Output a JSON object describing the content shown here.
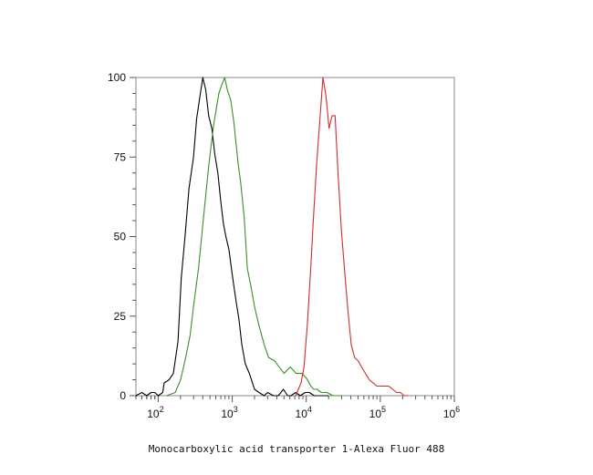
{
  "chart_data": {
    "type": "line",
    "title": "",
    "xlabel": "Monocarboxylic acid transporter 1-Alexa Fluor 488",
    "ylabel": "",
    "x_scale": "log",
    "xlim": [
      50,
      1000000
    ],
    "ylim": [
      0,
      100
    ],
    "grid": false,
    "y_ticks": [
      0,
      25,
      50,
      75,
      100
    ],
    "x_ticks": [
      {
        "value": 100,
        "base": "10",
        "exp": "2"
      },
      {
        "value": 1000,
        "base": "10",
        "exp": "3"
      },
      {
        "value": 10000,
        "base": "10",
        "exp": "4"
      },
      {
        "value": 100000,
        "base": "10",
        "exp": "5"
      },
      {
        "value": 1000000,
        "base": "10",
        "exp": "6"
      }
    ],
    "series": [
      {
        "color": "#000000",
        "points": [
          [
            50,
            0
          ],
          [
            60,
            1
          ],
          [
            70,
            0
          ],
          [
            80,
            1
          ],
          [
            90,
            1
          ],
          [
            100,
            0
          ],
          [
            115,
            1
          ],
          [
            120,
            4
          ],
          [
            140,
            5
          ],
          [
            160,
            7
          ],
          [
            185,
            17
          ],
          [
            205,
            37
          ],
          [
            230,
            50
          ],
          [
            260,
            65
          ],
          [
            300,
            75
          ],
          [
            330,
            87
          ],
          [
            360,
            93
          ],
          [
            400,
            100
          ],
          [
            440,
            96
          ],
          [
            480,
            88
          ],
          [
            530,
            84
          ],
          [
            580,
            76
          ],
          [
            640,
            70
          ],
          [
            700,
            61
          ],
          [
            760,
            54
          ],
          [
            820,
            50
          ],
          [
            900,
            46
          ],
          [
            1000,
            38
          ],
          [
            1120,
            30
          ],
          [
            1230,
            24
          ],
          [
            1350,
            16
          ],
          [
            1500,
            10
          ],
          [
            1700,
            7
          ],
          [
            2000,
            2
          ],
          [
            2300,
            1
          ],
          [
            2700,
            0
          ],
          [
            3000,
            1
          ],
          [
            3600,
            0
          ],
          [
            4200,
            0
          ],
          [
            4900,
            2
          ],
          [
            5600,
            0
          ],
          [
            6200,
            0
          ],
          [
            7200,
            1
          ],
          [
            8300,
            0
          ],
          [
            9700,
            1
          ],
          [
            11000,
            1
          ],
          [
            12800,
            0
          ],
          [
            15000,
            0
          ],
          [
            17500,
            0
          ],
          [
            20000,
            0
          ]
        ]
      },
      {
        "color": "#3a8f27",
        "points": [
          [
            130,
            0
          ],
          [
            170,
            1
          ],
          [
            200,
            5
          ],
          [
            230,
            11
          ],
          [
            270,
            19
          ],
          [
            300,
            28
          ],
          [
            350,
            40
          ],
          [
            410,
            56
          ],
          [
            480,
            72
          ],
          [
            560,
            85
          ],
          [
            660,
            95
          ],
          [
            730,
            98
          ],
          [
            790,
            100
          ],
          [
            860,
            96
          ],
          [
            950,
            93
          ],
          [
            1050,
            86
          ],
          [
            1200,
            73
          ],
          [
            1300,
            67
          ],
          [
            1450,
            56
          ],
          [
            1600,
            40
          ],
          [
            1800,
            34
          ],
          [
            2000,
            28
          ],
          [
            2300,
            22
          ],
          [
            2700,
            16
          ],
          [
            3100,
            12
          ],
          [
            3700,
            11
          ],
          [
            4300,
            9
          ],
          [
            5000,
            7
          ],
          [
            5500,
            8
          ],
          [
            6100,
            9
          ],
          [
            6700,
            8
          ],
          [
            7300,
            7
          ],
          [
            8000,
            7
          ],
          [
            8800,
            7
          ],
          [
            9600,
            6
          ],
          [
            10400,
            5
          ],
          [
            11500,
            3
          ],
          [
            12700,
            2
          ],
          [
            14000,
            2
          ],
          [
            16000,
            1
          ],
          [
            19000,
            1
          ],
          [
            23000,
            0
          ],
          [
            30000,
            0
          ]
        ]
      },
      {
        "color": "#d42a2a",
        "points": [
          [
            7200,
            0
          ],
          [
            7800,
            2
          ],
          [
            8500,
            4
          ],
          [
            9300,
            9
          ],
          [
            10300,
            22
          ],
          [
            11500,
            40
          ],
          [
            12500,
            56
          ],
          [
            13800,
            73
          ],
          [
            15300,
            87
          ],
          [
            16800,
            100
          ],
          [
            18500,
            94
          ],
          [
            20300,
            84
          ],
          [
            22300,
            88
          ],
          [
            24500,
            88
          ],
          [
            27000,
            69
          ],
          [
            29800,
            52
          ],
          [
            33000,
            39
          ],
          [
            36500,
            27
          ],
          [
            40500,
            16
          ],
          [
            45000,
            12
          ],
          [
            50000,
            11
          ],
          [
            56000,
            9
          ],
          [
            63000,
            7
          ],
          [
            71000,
            5
          ],
          [
            80000,
            4
          ],
          [
            90000,
            3
          ],
          [
            102000,
            3
          ],
          [
            115000,
            3
          ],
          [
            130000,
            3
          ],
          [
            147000,
            2
          ],
          [
            166000,
            1
          ],
          [
            187000,
            1
          ],
          [
            210000,
            0
          ],
          [
            240000,
            0
          ]
        ]
      }
    ]
  }
}
